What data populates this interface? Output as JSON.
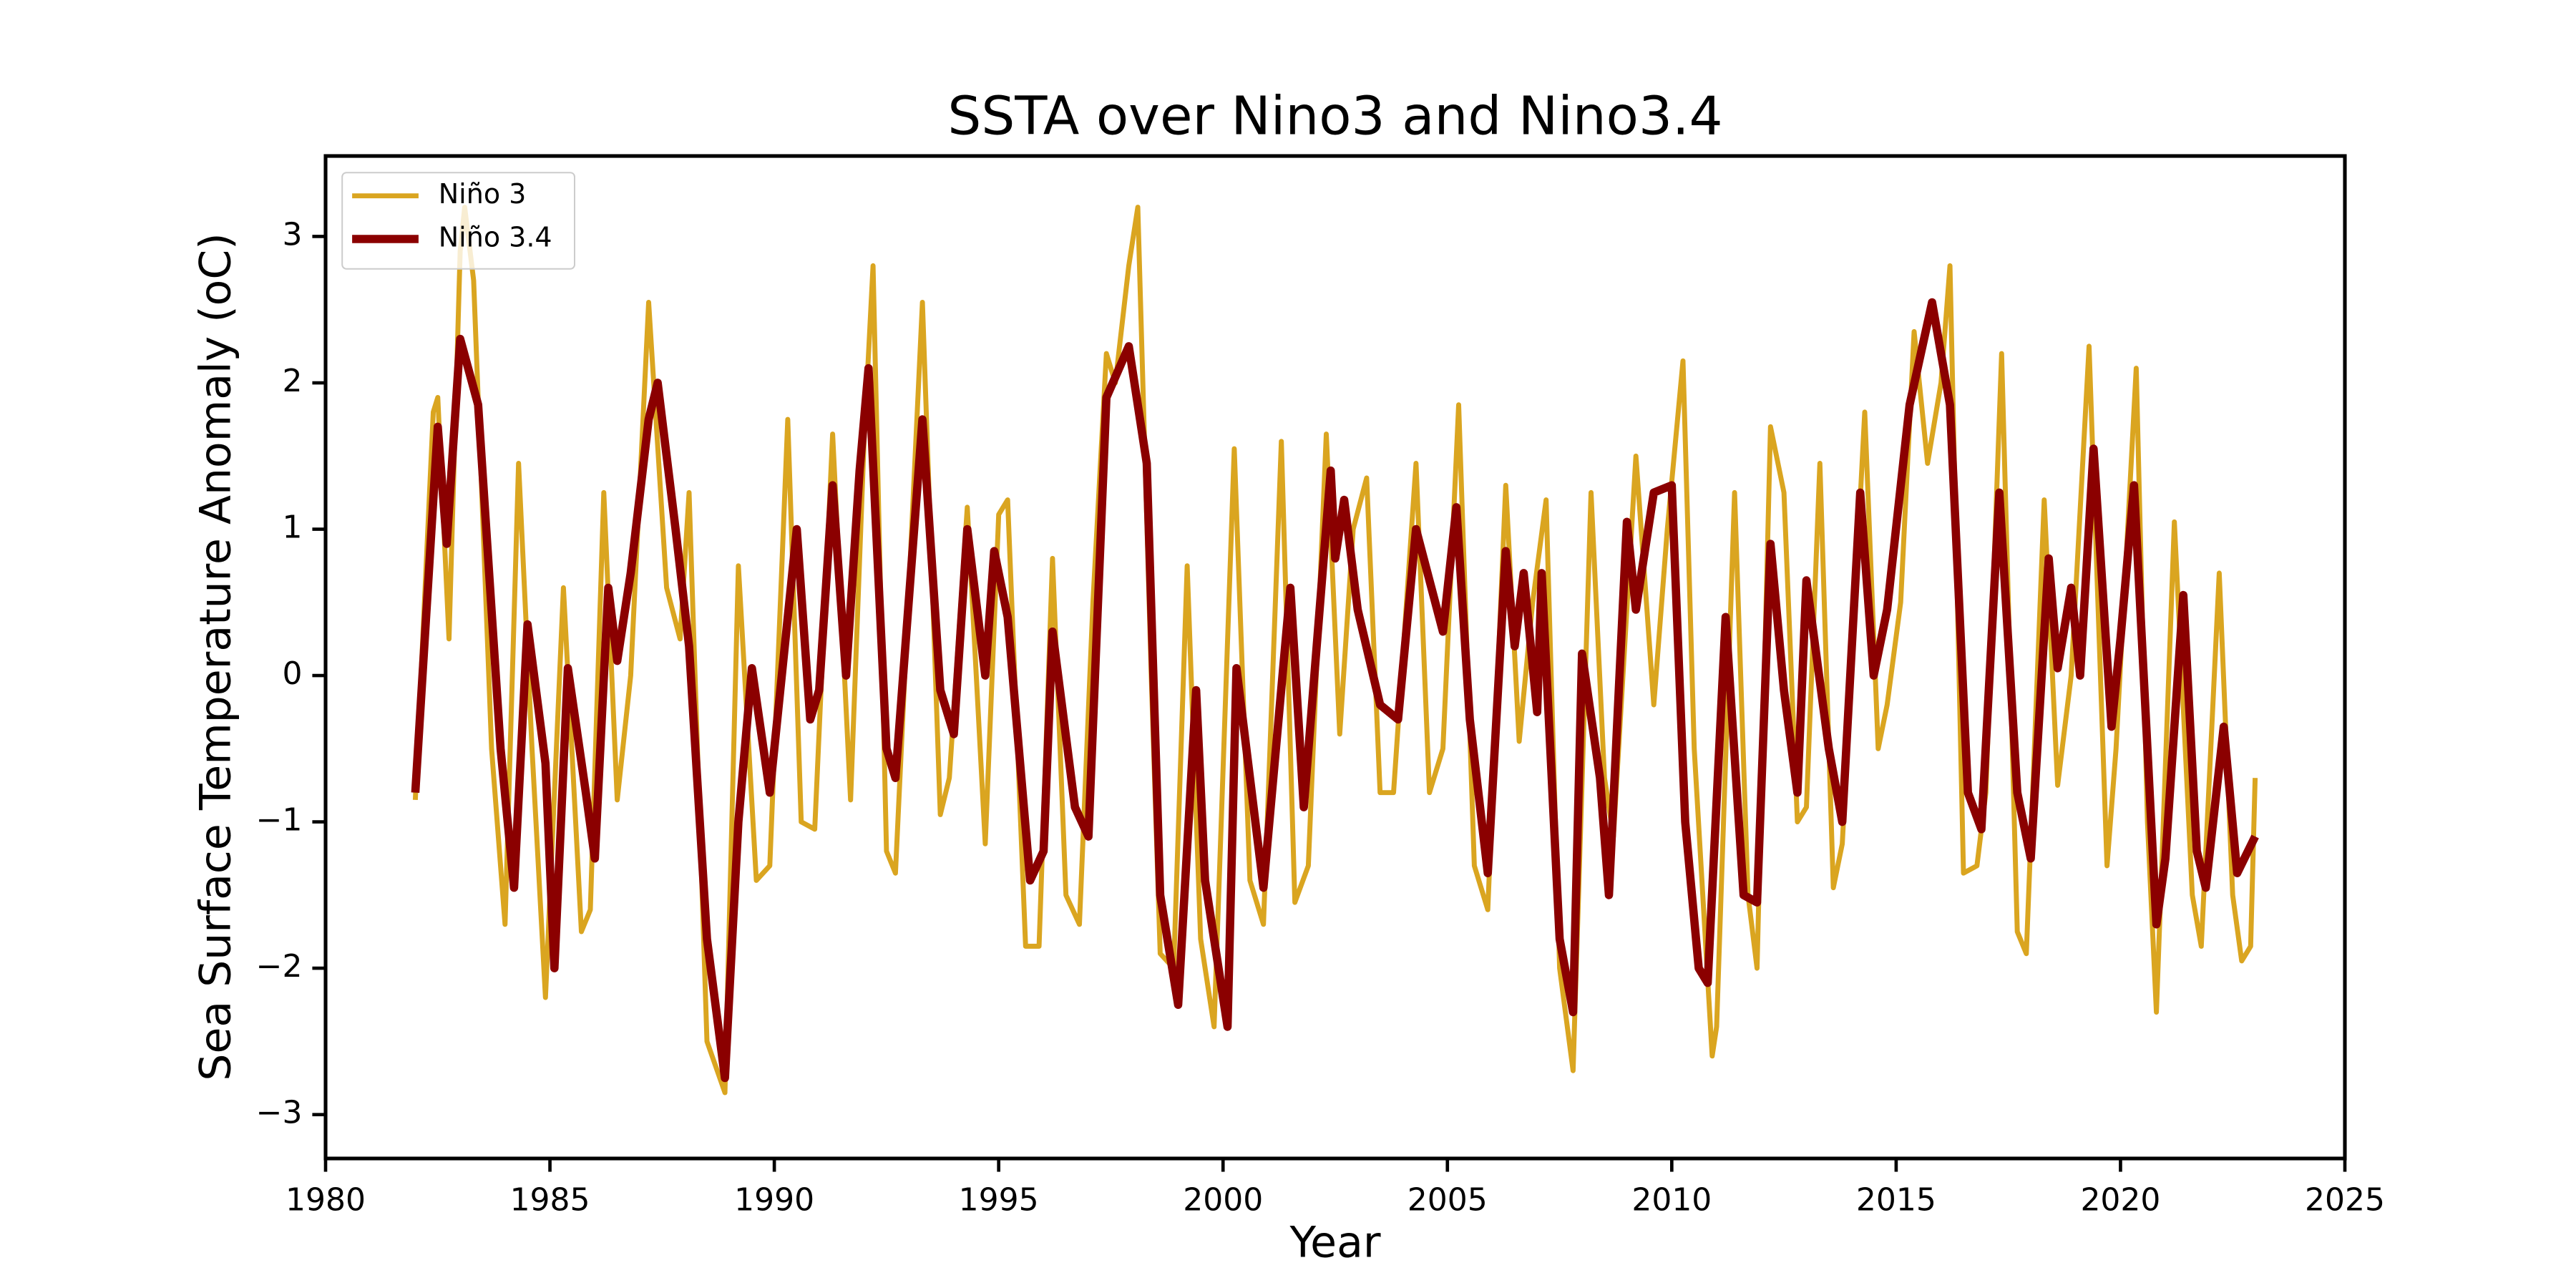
{
  "chart_data": {
    "type": "line",
    "title": "SSTA over Nino3 and Nino3.4",
    "xlabel": "Year",
    "ylabel": "Sea Surface Temperature Anomaly (oC)",
    "xlim": [
      1980,
      2025
    ],
    "xticks": [
      1980,
      1985,
      1990,
      1995,
      2000,
      2005,
      2010,
      2015,
      2020,
      2025
    ],
    "ylim": [
      -3.3,
      3.55
    ],
    "yticks": [
      -3,
      -2,
      -1,
      0,
      1,
      2,
      3
    ],
    "legend": "upper left",
    "series": [
      {
        "name": "Niño 3",
        "color": "#daa520",
        "width": 3,
        "x": [
          1982.0,
          1982.4,
          1982.5,
          1982.75,
          1983.0,
          1983.1,
          1983.3,
          1983.7,
          1984.0,
          1984.3,
          1984.6,
          1984.9,
          1985.3,
          1985.7,
          1985.9,
          1986.2,
          1986.5,
          1986.8,
          1987.2,
          1987.6,
          1987.9,
          1988.1,
          1988.5,
          1988.9,
          1989.2,
          1989.6,
          1989.9,
          1990.3,
          1990.6,
          1990.9,
          1991.3,
          1991.7,
          1992.0,
          1992.2,
          1992.5,
          1992.7,
          1993.3,
          1993.7,
          1993.9,
          1994.3,
          1994.7,
          1995.0,
          1995.2,
          1995.6,
          1995.9,
          1996.2,
          1996.5,
          1996.8,
          1997.1,
          1997.4,
          1997.6,
          1997.9,
          1998.1,
          1998.4,
          1998.6,
          1998.9,
          1999.2,
          1999.5,
          1999.8,
          2000.25,
          2000.6,
          2000.9,
          2001.3,
          2001.6,
          2001.9,
          2002.3,
          2002.6,
          2002.9,
          2003.2,
          2003.5,
          2003.8,
          2004.3,
          2004.6,
          2004.9,
          2005.25,
          2005.6,
          2005.9,
          2006.3,
          2006.6,
          2006.9,
          2007.2,
          2007.5,
          2007.8,
          2008.2,
          2008.5,
          2008.7,
          2009.2,
          2009.6,
          2009.9,
          2010.25,
          2010.5,
          2010.9,
          2011.0,
          2011.4,
          2011.7,
          2011.9,
          2012.2,
          2012.5,
          2012.8,
          2013.0,
          2013.3,
          2013.6,
          2013.8,
          2014.3,
          2014.6,
          2014.8,
          2015.1,
          2015.4,
          2015.7,
          2016.0,
          2016.2,
          2016.5,
          2016.8,
          2017.0,
          2017.35,
          2017.7,
          2017.9,
          2018.3,
          2018.6,
          2018.9,
          2019.3,
          2019.7,
          2019.9,
          2020.35,
          2020.6,
          2020.8,
          2021.2,
          2021.6,
          2021.8,
          2022.2,
          2022.5,
          2022.7,
          2022.9,
          2023.0
        ],
        "values": [
          -0.85,
          1.8,
          1.9,
          0.25,
          2.9,
          3.2,
          2.7,
          -0.5,
          -1.7,
          1.45,
          -0.5,
          -2.2,
          0.6,
          -1.75,
          -1.6,
          1.25,
          -0.85,
          0.0,
          2.55,
          0.6,
          0.25,
          1.25,
          -2.5,
          -2.85,
          0.75,
          -1.4,
          -1.3,
          1.75,
          -1.0,
          -1.05,
          1.65,
          -0.85,
          1.6,
          2.8,
          -1.2,
          -1.35,
          2.55,
          -0.95,
          -0.7,
          1.15,
          -1.15,
          1.1,
          1.2,
          -1.85,
          -1.85,
          0.8,
          -1.5,
          -1.7,
          0.5,
          2.2,
          2.0,
          2.8,
          3.2,
          0.0,
          -1.9,
          -2.0,
          0.75,
          -1.8,
          -2.4,
          1.55,
          -1.4,
          -1.7,
          1.6,
          -1.55,
          -1.3,
          1.65,
          -0.4,
          1.0,
          1.35,
          -0.8,
          -0.8,
          1.45,
          -0.8,
          -0.5,
          1.85,
          -1.3,
          -1.6,
          1.3,
          -0.45,
          0.5,
          1.2,
          -2.0,
          -2.7,
          1.25,
          -0.7,
          -1.1,
          1.5,
          -0.2,
          1.0,
          2.15,
          -0.5,
          -2.6,
          -2.4,
          1.25,
          -1.5,
          -2.0,
          1.7,
          1.25,
          -1.0,
          -0.9,
          1.45,
          -1.45,
          -1.15,
          1.8,
          -0.5,
          -0.2,
          0.5,
          2.35,
          1.45,
          2.0,
          2.8,
          -1.35,
          -1.3,
          -0.8,
          2.2,
          -1.75,
          -1.9,
          1.2,
          -0.75,
          0.0,
          2.25,
          -1.3,
          -0.5,
          2.1,
          -1.0,
          -2.3,
          1.05,
          -1.5,
          -1.85,
          0.7,
          -1.5,
          -1.95,
          -1.85,
          -0.7
        ]
      },
      {
        "name": "Niño 3.4",
        "color": "#8b0000",
        "width": 5,
        "x": [
          1982.0,
          1982.5,
          1982.7,
          1983.0,
          1983.4,
          1983.9,
          1984.2,
          1984.5,
          1984.9,
          1985.1,
          1985.4,
          1985.8,
          1986.0,
          1986.3,
          1986.5,
          1986.8,
          1987.2,
          1987.4,
          1987.8,
          1988.1,
          1988.5,
          1988.9,
          1989.2,
          1989.5,
          1989.9,
          1990.5,
          1990.8,
          1991.0,
          1991.3,
          1991.6,
          1991.9,
          1992.1,
          1992.5,
          1992.7,
          1993.3,
          1993.7,
          1994.0,
          1994.3,
          1994.7,
          1994.9,
          1995.2,
          1995.7,
          1996.0,
          1996.2,
          1996.7,
          1997.0,
          1997.4,
          1997.9,
          1998.3,
          1998.6,
          1999.0,
          1999.4,
          1999.6,
          2000.1,
          2000.3,
          2000.9,
          2001.5,
          2001.8,
          2002.4,
          2002.5,
          2002.7,
          2003.0,
          2003.5,
          2003.9,
          2004.3,
          2004.9,
          2005.2,
          2005.5,
          2005.9,
          2006.3,
          2006.5,
          2006.7,
          2007.0,
          2007.1,
          2007.5,
          2007.8,
          2008.0,
          2008.4,
          2008.6,
          2009.0,
          2009.2,
          2009.6,
          2010.0,
          2010.3,
          2010.6,
          2010.8,
          2011.2,
          2011.6,
          2011.9,
          2012.2,
          2012.5,
          2012.8,
          2013.0,
          2013.5,
          2013.8,
          2014.2,
          2014.5,
          2014.8,
          2015.3,
          2015.8,
          2016.2,
          2016.6,
          2016.9,
          2017.3,
          2017.7,
          2018.0,
          2018.4,
          2018.6,
          2018.9,
          2019.1,
          2019.4,
          2019.8,
          2020.0,
          2020.3,
          2020.8,
          2021.0,
          2021.4,
          2021.7,
          2021.9,
          2022.3,
          2022.6,
          2023.0
        ],
        "values": [
          -0.8,
          1.7,
          0.9,
          2.3,
          1.85,
          -0.5,
          -1.45,
          0.35,
          -0.6,
          -2.0,
          0.05,
          -0.8,
          -1.25,
          0.6,
          0.1,
          0.7,
          1.75,
          2.0,
          1.0,
          0.2,
          -1.8,
          -2.75,
          -1.0,
          0.05,
          -0.8,
          1.0,
          -0.3,
          -0.1,
          1.3,
          0.0,
          1.4,
          2.1,
          -0.5,
          -0.7,
          1.75,
          -0.1,
          -0.4,
          1.0,
          0.0,
          0.85,
          0.4,
          -1.4,
          -1.2,
          0.3,
          -0.9,
          -1.1,
          1.9,
          2.25,
          1.45,
          -1.5,
          -2.25,
          -0.1,
          -1.4,
          -2.4,
          0.05,
          -1.45,
          0.6,
          -0.9,
          1.4,
          0.8,
          1.2,
          0.45,
          -0.2,
          -0.3,
          1.0,
          0.3,
          1.15,
          -0.3,
          -1.35,
          0.85,
          0.2,
          0.7,
          -0.25,
          0.7,
          -1.8,
          -2.3,
          0.15,
          -0.7,
          -1.5,
          1.05,
          0.45,
          1.25,
          1.3,
          -1.0,
          -2.0,
          -2.1,
          0.4,
          -1.5,
          -1.55,
          0.9,
          -0.1,
          -0.8,
          0.65,
          -0.5,
          -1.0,
          1.25,
          0.0,
          0.45,
          1.85,
          2.55,
          1.85,
          -0.8,
          -1.05,
          1.25,
          -0.8,
          -1.25,
          0.8,
          0.05,
          0.6,
          0.0,
          1.55,
          -0.35,
          0.25,
          1.3,
          -1.7,
          -1.25,
          0.55,
          -1.2,
          -1.45,
          -0.35,
          -1.35,
          -1.1
        ]
      }
    ]
  }
}
